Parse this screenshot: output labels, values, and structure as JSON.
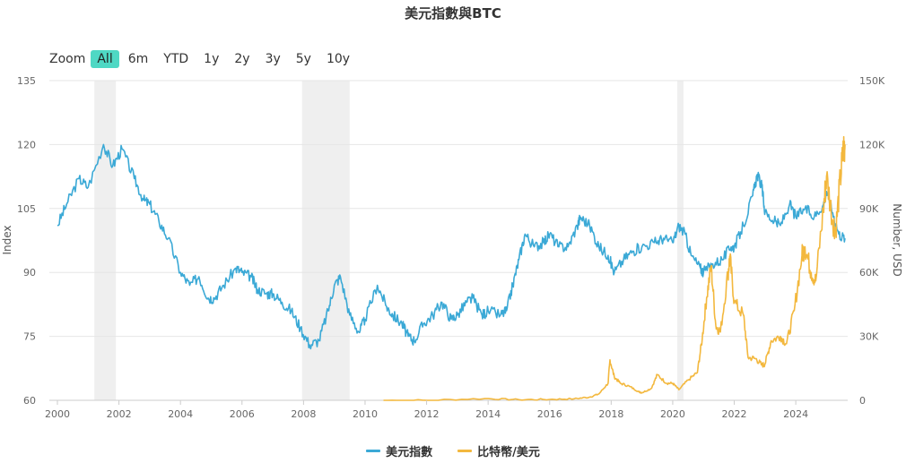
{
  "chart_data": {
    "type": "line",
    "title": "美元指數與BTC",
    "zoom": {
      "label": "Zoom",
      "buttons": [
        "All",
        "6m",
        "YTD",
        "1y",
        "2y",
        "3y",
        "5y",
        "10y"
      ],
      "active": "All"
    },
    "x_range": [
      2000,
      2025.6
    ],
    "x_ticks": [
      "2000",
      "2002",
      "2004",
      "2006",
      "2008",
      "2010",
      "2012",
      "2014",
      "2016",
      "2018",
      "2020",
      "2022",
      "2024"
    ],
    "y_left": {
      "label": "Index",
      "range": [
        60,
        135
      ],
      "ticks": [
        "60",
        "75",
        "90",
        "105",
        "120",
        "135"
      ]
    },
    "y_right": {
      "label": "Number, USD",
      "range": [
        0,
        150000
      ],
      "ticks": [
        "0",
        "30K",
        "60K",
        "90K",
        "120K",
        "150K"
      ]
    },
    "recession_bands": [
      {
        "start": 2001.2,
        "end": 2001.9
      },
      {
        "start": 2007.95,
        "end": 2009.5
      },
      {
        "start": 2020.15,
        "end": 2020.35
      }
    ],
    "series": [
      {
        "name": "美元指數",
        "axis": "left",
        "color": "#3ba9d6",
        "points": [
          [
            2000.0,
            101
          ],
          [
            2000.3,
            106
          ],
          [
            2000.7,
            112
          ],
          [
            2001.0,
            110
          ],
          [
            2001.5,
            120
          ],
          [
            2001.8,
            115
          ],
          [
            2002.1,
            119
          ],
          [
            2002.5,
            112
          ],
          [
            2002.8,
            107
          ],
          [
            2003.0,
            106
          ],
          [
            2003.3,
            102
          ],
          [
            2003.6,
            98
          ],
          [
            2004.0,
            90
          ],
          [
            2004.3,
            87
          ],
          [
            2004.6,
            89
          ],
          [
            2004.9,
            84
          ],
          [
            2005.1,
            84
          ],
          [
            2005.4,
            87
          ],
          [
            2005.8,
            91
          ],
          [
            2006.0,
            90
          ],
          [
            2006.3,
            89
          ],
          [
            2006.5,
            86
          ],
          [
            2006.8,
            85
          ],
          [
            2007.0,
            85
          ],
          [
            2007.3,
            83
          ],
          [
            2007.6,
            81
          ],
          [
            2007.9,
            77
          ],
          [
            2008.2,
            73
          ],
          [
            2008.5,
            74
          ],
          [
            2008.8,
            81
          ],
          [
            2009.0,
            87
          ],
          [
            2009.2,
            89
          ],
          [
            2009.5,
            80
          ],
          [
            2009.8,
            76
          ],
          [
            2010.0,
            79
          ],
          [
            2010.4,
            87
          ],
          [
            2010.7,
            82
          ],
          [
            2010.9,
            80
          ],
          [
            2011.2,
            78
          ],
          [
            2011.4,
            75
          ],
          [
            2011.6,
            74
          ],
          [
            2011.9,
            78
          ],
          [
            2012.2,
            80
          ],
          [
            2012.5,
            83
          ],
          [
            2012.8,
            79
          ],
          [
            2013.0,
            80
          ],
          [
            2013.3,
            83
          ],
          [
            2013.5,
            84
          ],
          [
            2013.8,
            80
          ],
          [
            2014.0,
            81
          ],
          [
            2014.4,
            80
          ],
          [
            2014.6,
            81
          ],
          [
            2014.8,
            87
          ],
          [
            2015.0,
            93
          ],
          [
            2015.2,
            99
          ],
          [
            2015.5,
            96
          ],
          [
            2015.8,
            97
          ],
          [
            2016.0,
            99
          ],
          [
            2016.3,
            96
          ],
          [
            2016.6,
            96
          ],
          [
            2016.9,
            101
          ],
          [
            2017.0,
            103
          ],
          [
            2017.3,
            101
          ],
          [
            2017.6,
            96
          ],
          [
            2017.9,
            94
          ],
          [
            2018.1,
            90
          ],
          [
            2018.4,
            93
          ],
          [
            2018.7,
            95
          ],
          [
            2019.0,
            96
          ],
          [
            2019.4,
            97
          ],
          [
            2019.7,
            98
          ],
          [
            2020.0,
            97
          ],
          [
            2020.2,
            101
          ],
          [
            2020.4,
            99
          ],
          [
            2020.6,
            94
          ],
          [
            2020.9,
            91
          ],
          [
            2021.0,
            90
          ],
          [
            2021.3,
            92
          ],
          [
            2021.6,
            93
          ],
          [
            2021.9,
            96
          ],
          [
            2022.0,
            96
          ],
          [
            2022.3,
            101
          ],
          [
            2022.6,
            108
          ],
          [
            2022.75,
            113
          ],
          [
            2022.9,
            110
          ],
          [
            2023.0,
            104
          ],
          [
            2023.3,
            102
          ],
          [
            2023.5,
            101
          ],
          [
            2023.8,
            106
          ],
          [
            2024.0,
            103
          ],
          [
            2024.3,
            105
          ],
          [
            2024.6,
            103
          ],
          [
            2024.9,
            106
          ],
          [
            2025.0,
            109
          ],
          [
            2025.2,
            104
          ],
          [
            2025.4,
            99
          ],
          [
            2025.6,
            98
          ]
        ]
      },
      {
        "name": "比特幣/美元",
        "axis": "right",
        "color": "#f3b83e",
        "points": [
          [
            2010.6,
            0
          ],
          [
            2012.0,
            5
          ],
          [
            2013.9,
            800
          ],
          [
            2015.0,
            300
          ],
          [
            2016.0,
            430
          ],
          [
            2016.8,
            700
          ],
          [
            2017.3,
            1500
          ],
          [
            2017.6,
            3000
          ],
          [
            2017.9,
            8000
          ],
          [
            2017.96,
            19000
          ],
          [
            2018.1,
            11000
          ],
          [
            2018.3,
            8000
          ],
          [
            2018.6,
            6500
          ],
          [
            2018.9,
            4000
          ],
          [
            2019.0,
            3600
          ],
          [
            2019.3,
            5500
          ],
          [
            2019.5,
            12000
          ],
          [
            2019.8,
            8000
          ],
          [
            2020.0,
            8000
          ],
          [
            2020.2,
            5000
          ],
          [
            2020.5,
            9500
          ],
          [
            2020.8,
            13000
          ],
          [
            2020.96,
            29000
          ],
          [
            2021.1,
            48000
          ],
          [
            2021.25,
            63000
          ],
          [
            2021.4,
            35000
          ],
          [
            2021.55,
            32000
          ],
          [
            2021.8,
            60000
          ],
          [
            2021.86,
            67000
          ],
          [
            2022.0,
            46000
          ],
          [
            2022.3,
            40000
          ],
          [
            2022.45,
            20000
          ],
          [
            2022.7,
            19500
          ],
          [
            2022.9,
            16500
          ],
          [
            2023.0,
            17000
          ],
          [
            2023.2,
            28000
          ],
          [
            2023.5,
            30000
          ],
          [
            2023.7,
            26500
          ],
          [
            2023.95,
            42000
          ],
          [
            2024.2,
            68000
          ],
          [
            2024.3,
            72000
          ],
          [
            2024.5,
            60000
          ],
          [
            2024.65,
            56000
          ],
          [
            2024.9,
            90000
          ],
          [
            2025.0,
            105000
          ],
          [
            2025.2,
            84000
          ],
          [
            2025.3,
            80000
          ],
          [
            2025.45,
            104000
          ],
          [
            2025.55,
            118000
          ],
          [
            2025.6,
            120000
          ]
        ]
      }
    ]
  }
}
